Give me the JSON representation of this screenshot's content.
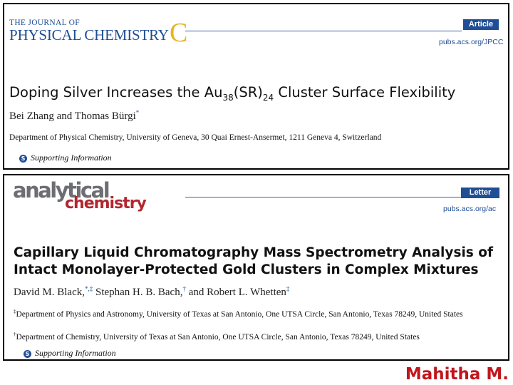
{
  "panel1": {
    "journal_top": "THE JOURNAL OF",
    "journal_main": "PHYSICAL CHEMISTRY",
    "journal_letter": "C",
    "badge": "Article",
    "url": "pubs.acs.org/JPCC",
    "title_pre": "Doping Silver Increases the Au",
    "title_sub1": "38",
    "title_mid": "(SR)",
    "title_sub2": "24",
    "title_post": " Cluster Surface Flexibility",
    "authors": "Bei Zhang and Thomas Bürgi",
    "author_mark": "*",
    "affiliation": "Department of Physical Chemistry, University of Geneva, 30 Quai Ernest-Ansermet, 1211 Geneva 4, Switzerland",
    "si_icon": "S",
    "si_text": "Supporting Information"
  },
  "panel2": {
    "logo_line1": "analytical",
    "logo_line2": "chemistry",
    "badge": "Letter",
    "url": "pubs.acs.org/ac",
    "title_line1": "Capillary Liquid Chromatography Mass Spectrometry Analysis of",
    "title_line2": "Intact Monolayer-Protected Gold Clusters in Complex Mixtures",
    "author1": "David M. Black,",
    "author1_marks": "*,‡",
    "author2": " Stephan H. B. Bach,",
    "author2_marks": "†",
    "author3": " and Robert L. Whetten",
    "author3_marks": "‡",
    "affil1_mark": "‡",
    "affil1": "Department of Physics and Astronomy, University of Texas at San Antonio, One UTSA Circle, San Antonio, Texas 78249, United States",
    "affil2_mark": "†",
    "affil2": "Department of Chemistry, University of Texas at San Antonio, One UTSA Circle, San Antonio, Texas 78249, United States",
    "si_icon": "S",
    "si_text": "Supporting Information"
  },
  "presenter": "Mahitha M.",
  "colors": {
    "acs_blue": "#1f4e96",
    "jpc_gold": "#e8b322",
    "ac_gray": "#6d6e71",
    "ac_red": "#b3262e",
    "presenter_red": "#c0161c"
  }
}
